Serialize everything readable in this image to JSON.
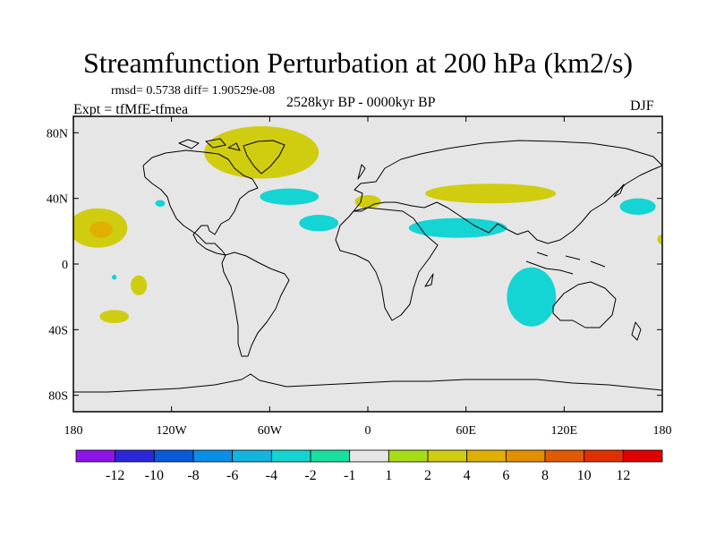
{
  "chart_data": {
    "type": "heatmap",
    "title": "Streamfunction Perturbation at 200 hPa (km2/s)",
    "stats": "rmsd= 0.5738 diff= 1.90529e-08",
    "period": "2528kyr BP - 0000kyr BP",
    "experiment": "Expt = tfMfE-tfmea",
    "season": "DJF",
    "x_axis": {
      "range": [
        -180,
        180
      ],
      "ticks": [
        -180,
        -120,
        -60,
        0,
        60,
        120,
        180
      ],
      "tick_labels": [
        "180",
        "120W",
        "60W",
        "0",
        "60E",
        "120E",
        "180"
      ]
    },
    "y_axis": {
      "range": [
        -90,
        90
      ],
      "ticks": [
        80,
        40,
        0,
        -40,
        -80
      ],
      "tick_labels": [
        "80N",
        "40N",
        "0",
        "40S",
        "80S"
      ]
    },
    "colorbar": {
      "colors": [
        "#8f14e8",
        "#2b26d8",
        "#0a5ad8",
        "#0a8fe6",
        "#14b4e0",
        "#14d4d4",
        "#18e0a0",
        "#e6e6e6",
        "#a8dc18",
        "#d0cc10",
        "#e0b000",
        "#e09000",
        "#e05a00",
        "#e03000",
        "#e00000"
      ],
      "labels": [
        "-12",
        "-10",
        "-8",
        "-6",
        "-4",
        "-2",
        "-1",
        "1",
        "2",
        "4",
        "6",
        "8",
        "10",
        "12"
      ]
    },
    "anomalies": [
      {
        "name": "greenland-anomaly",
        "level": "2",
        "lon": -65,
        "lat": 68,
        "rlon": 35,
        "rlat": 16
      },
      {
        "name": "north-pacific-anomaly",
        "level": "2",
        "lon": -165,
        "lat": 22,
        "rlon": 18,
        "rlat": 12
      },
      {
        "name": "north-pacific-core",
        "level": "4",
        "lon": -163,
        "lat": 21,
        "rlon": 7,
        "rlat": 5
      },
      {
        "name": "north-atlantic-anomaly",
        "level": "-2",
        "lon": -48,
        "lat": 41,
        "rlon": 18,
        "rlat": 5
      },
      {
        "name": "north-america-anomaly",
        "level": "-2",
        "lon": -127,
        "lat": 37,
        "rlon": 3,
        "rlat": 2
      },
      {
        "name": "subtropical-atlantic-anomaly",
        "level": "-2",
        "lon": -30,
        "lat": 25,
        "rlon": 12,
        "rlat": 5
      },
      {
        "name": "mediterranean-anomaly",
        "level": "2",
        "lon": 0,
        "lat": 38,
        "rlon": 8,
        "rlat": 4
      },
      {
        "name": "eurasia-anomaly",
        "level": "2",
        "lon": 75,
        "lat": 43,
        "rlon": 40,
        "rlat": 6
      },
      {
        "name": "middle-east-anomaly",
        "level": "-2",
        "lon": 55,
        "lat": 22,
        "rlon": 30,
        "rlat": 6
      },
      {
        "name": "west-pacific-anomaly",
        "level": "-2",
        "lon": 165,
        "lat": 35,
        "rlon": 11,
        "rlat": 5
      },
      {
        "name": "date-line-anomaly",
        "level": "2",
        "lon": 180,
        "lat": 15,
        "rlon": 3,
        "rlat": 3
      },
      {
        "name": "east-pacific-anomaly",
        "level": "2",
        "lon": -140,
        "lat": -13,
        "rlon": 5,
        "rlat": 6
      },
      {
        "name": "south-pacific-anomaly",
        "level": "2",
        "lon": -155,
        "lat": -32,
        "rlon": 9,
        "rlat": 4
      },
      {
        "name": "tropical-pacific-anomaly",
        "level": "-2",
        "lon": -155,
        "lat": -8,
        "rlon": 1.5,
        "rlat": 1.5
      },
      {
        "name": "indian-ocean-anomaly",
        "level": "-2",
        "lon": 100,
        "lat": -20,
        "rlon": 15,
        "rlat": 18
      }
    ]
  }
}
